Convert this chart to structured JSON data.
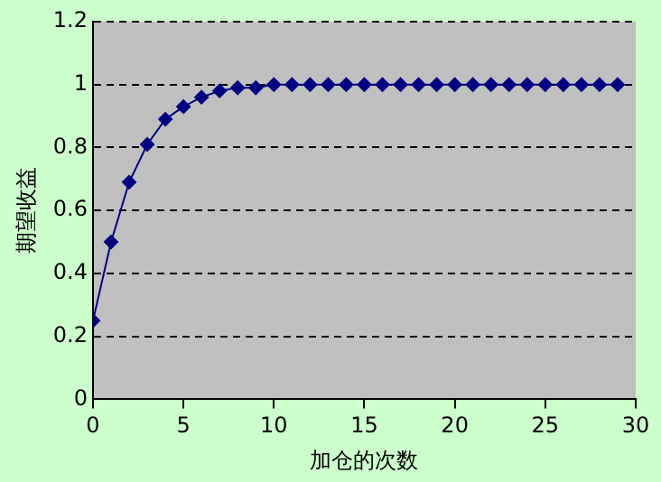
{
  "chart_data": {
    "type": "line",
    "xlabel": "加仓的次数",
    "ylabel": "期望收益",
    "x": [
      0,
      1,
      2,
      3,
      4,
      5,
      6,
      7,
      8,
      9,
      10,
      11,
      12,
      13,
      14,
      15,
      16,
      17,
      18,
      19,
      20,
      21,
      22,
      23,
      24,
      25,
      26,
      27,
      28,
      29
    ],
    "series": [
      {
        "color": "#000080",
        "values": [
          0.25,
          0.5,
          0.69,
          0.81,
          0.89,
          0.93,
          0.96,
          0.98,
          0.99,
          0.99,
          1,
          1,
          1,
          1,
          1,
          1,
          1,
          1,
          1,
          1,
          1,
          1,
          1,
          1,
          1,
          1,
          1,
          1,
          1,
          1
        ]
      }
    ],
    "xlim": [
      0,
      30
    ],
    "xticks": [
      0,
      5,
      10,
      15,
      20,
      25,
      30
    ],
    "ylim": [
      0,
      1.2
    ],
    "yticks": [
      0,
      0.2,
      0.4,
      0.6,
      0.8,
      1,
      1.2
    ],
    "grid": "y",
    "legend": false,
    "marker": "diamond",
    "line_style": "solid"
  }
}
